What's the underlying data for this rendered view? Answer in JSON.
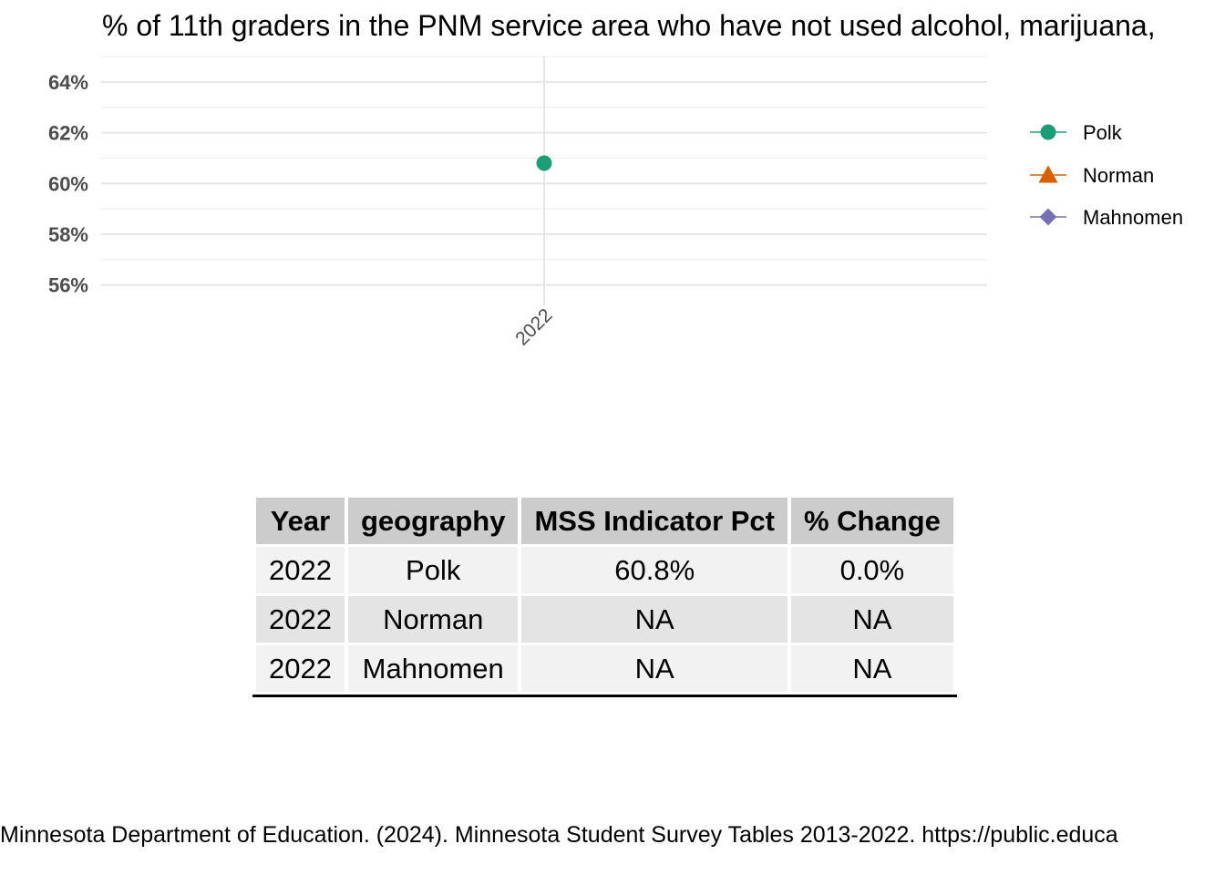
{
  "chart_data": {
    "type": "line",
    "title": "% of 11th graders in the PNM service area who have not used alcohol, marijuana,",
    "xlabel": "",
    "ylabel": "",
    "x": [
      "2022"
    ],
    "ylim": [
      55.2,
      65.0
    ],
    "yticks": [
      56,
      58,
      60,
      62,
      64
    ],
    "ytick_labels": [
      "56%",
      "58%",
      "60%",
      "62%",
      "64%"
    ],
    "grid": true,
    "legend_position": "right",
    "series": [
      {
        "name": "Polk",
        "values": [
          60.8
        ],
        "color": "#1b9e77",
        "marker": "circle"
      },
      {
        "name": "Norman",
        "values": [
          null
        ],
        "color": "#d95f02",
        "marker": "triangle"
      },
      {
        "name": "Mahnomen",
        "values": [
          null
        ],
        "color": "#7570b3",
        "marker": "diamond"
      }
    ]
  },
  "table": {
    "headers": [
      "Year",
      "geography",
      "MSS Indicator Pct",
      "% Change"
    ],
    "rows": [
      [
        "2022",
        "Polk",
        "60.8%",
        "0.0%"
      ],
      [
        "2022",
        "Norman",
        "NA",
        "NA"
      ],
      [
        "2022",
        "Mahnomen",
        "NA",
        "NA"
      ]
    ]
  },
  "caption": "Minnesota Department of Education. (2024). Minnesota Student Survey Tables 2013-2022. https://public.educa"
}
